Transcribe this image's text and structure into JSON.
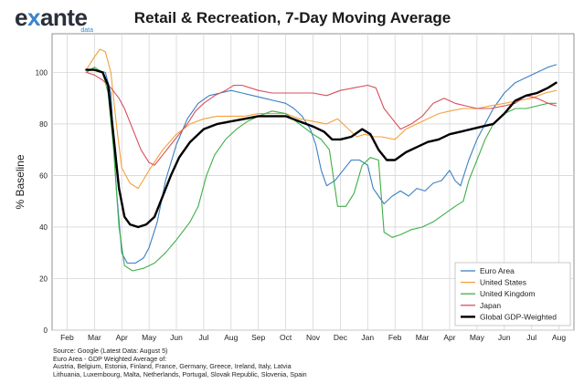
{
  "logo": {
    "text_main": "exante",
    "text_sub": "data"
  },
  "chart_data": {
    "type": "line",
    "title": "Retail & Recreation, 7-Day Moving Average",
    "ylabel": "% Baseline",
    "xlabel": "",
    "ylim": [
      0,
      115
    ],
    "yticks": [
      0,
      20,
      40,
      60,
      80,
      100
    ],
    "x_tick_labels": [
      "Feb",
      "Mar",
      "Apr",
      "May",
      "Jun",
      "Jul",
      "Aug",
      "Sep",
      "Oct",
      "Nov",
      "Dec",
      "Jan",
      "Feb",
      "Mar",
      "Apr",
      "May",
      "Jun",
      "Jul",
      "Aug"
    ],
    "x_unit_note": "month index from Feb 2020 (0) to Aug 2021 (18)",
    "grid": true,
    "legend_position": "bottom-right",
    "series": [
      {
        "name": "Euro Area",
        "color": "#3b7fc4",
        "points": [
          [
            1,
            101
          ],
          [
            1.4,
            100
          ],
          [
            1.6,
            92
          ],
          [
            1.8,
            55
          ],
          [
            2.0,
            30
          ],
          [
            2.2,
            26
          ],
          [
            2.5,
            26
          ],
          [
            2.8,
            28
          ],
          [
            3.0,
            32
          ],
          [
            3.3,
            42
          ],
          [
            3.6,
            58
          ],
          [
            4.0,
            72
          ],
          [
            4.4,
            82
          ],
          [
            4.8,
            88
          ],
          [
            5.2,
            91
          ],
          [
            5.6,
            92
          ],
          [
            6.0,
            93
          ],
          [
            6.4,
            92
          ],
          [
            6.8,
            91
          ],
          [
            7.2,
            90
          ],
          [
            7.6,
            89
          ],
          [
            8.0,
            88
          ],
          [
            8.3,
            86
          ],
          [
            8.6,
            83
          ],
          [
            8.9,
            78
          ],
          [
            9.1,
            72
          ],
          [
            9.3,
            62
          ],
          [
            9.5,
            56
          ],
          [
            9.8,
            58
          ],
          [
            10.1,
            62
          ],
          [
            10.4,
            66
          ],
          [
            10.7,
            66
          ],
          [
            11.0,
            64
          ],
          [
            11.2,
            55
          ],
          [
            11.4,
            52
          ],
          [
            11.6,
            49
          ],
          [
            11.9,
            52
          ],
          [
            12.2,
            54
          ],
          [
            12.5,
            52
          ],
          [
            12.8,
            55
          ],
          [
            13.1,
            54
          ],
          [
            13.4,
            57
          ],
          [
            13.7,
            58
          ],
          [
            14.0,
            62
          ],
          [
            14.2,
            58
          ],
          [
            14.4,
            56
          ],
          [
            14.7,
            66
          ],
          [
            15.0,
            74
          ],
          [
            15.3,
            80
          ],
          [
            15.6,
            86
          ],
          [
            16.0,
            92
          ],
          [
            16.4,
            96
          ],
          [
            16.8,
            98
          ],
          [
            17.2,
            100
          ],
          [
            17.6,
            102
          ],
          [
            17.9,
            103
          ]
        ]
      },
      {
        "name": "United States",
        "color": "#f4a13a",
        "points": [
          [
            0.7,
            101
          ],
          [
            1.0,
            106
          ],
          [
            1.2,
            109
          ],
          [
            1.4,
            108
          ],
          [
            1.6,
            100
          ],
          [
            1.8,
            80
          ],
          [
            2.0,
            63
          ],
          [
            2.3,
            57
          ],
          [
            2.6,
            55
          ],
          [
            3.0,
            62
          ],
          [
            3.5,
            70
          ],
          [
            4.0,
            76
          ],
          [
            4.5,
            80
          ],
          [
            5.0,
            82
          ],
          [
            5.5,
            83
          ],
          [
            6.0,
            83
          ],
          [
            6.5,
            83
          ],
          [
            7.0,
            84
          ],
          [
            7.5,
            84
          ],
          [
            8.0,
            84
          ],
          [
            8.5,
            82
          ],
          [
            9.0,
            81
          ],
          [
            9.5,
            80
          ],
          [
            9.9,
            82
          ],
          [
            10.3,
            78
          ],
          [
            10.6,
            75
          ],
          [
            10.9,
            76
          ],
          [
            11.2,
            75
          ],
          [
            11.5,
            75
          ],
          [
            12.0,
            74
          ],
          [
            12.4,
            78
          ],
          [
            12.8,
            80
          ],
          [
            13.2,
            82
          ],
          [
            13.6,
            84
          ],
          [
            14.0,
            85
          ],
          [
            14.5,
            86
          ],
          [
            15.0,
            86
          ],
          [
            15.5,
            87
          ],
          [
            16.0,
            88
          ],
          [
            16.5,
            89
          ],
          [
            17.0,
            90
          ],
          [
            17.5,
            92
          ],
          [
            17.9,
            93
          ]
        ]
      },
      {
        "name": "United Kingdom",
        "color": "#3fae49",
        "points": [
          [
            0.7,
            100
          ],
          [
            1.0,
            102
          ],
          [
            1.3,
            100
          ],
          [
            1.5,
            92
          ],
          [
            1.7,
            70
          ],
          [
            1.9,
            40
          ],
          [
            2.1,
            25
          ],
          [
            2.4,
            23
          ],
          [
            2.8,
            24
          ],
          [
            3.2,
            26
          ],
          [
            3.6,
            30
          ],
          [
            4.0,
            35
          ],
          [
            4.5,
            42
          ],
          [
            4.8,
            48
          ],
          [
            5.1,
            60
          ],
          [
            5.4,
            68
          ],
          [
            5.8,
            74
          ],
          [
            6.2,
            78
          ],
          [
            6.6,
            81
          ],
          [
            7.0,
            83
          ],
          [
            7.5,
            85
          ],
          [
            8.0,
            84
          ],
          [
            8.5,
            80
          ],
          [
            9.0,
            76
          ],
          [
            9.3,
            74
          ],
          [
            9.6,
            70
          ],
          [
            9.9,
            48
          ],
          [
            10.2,
            48
          ],
          [
            10.5,
            53
          ],
          [
            10.8,
            64
          ],
          [
            11.1,
            67
          ],
          [
            11.4,
            66
          ],
          [
            11.6,
            38
          ],
          [
            11.9,
            36
          ],
          [
            12.2,
            37
          ],
          [
            12.6,
            39
          ],
          [
            13.0,
            40
          ],
          [
            13.4,
            42
          ],
          [
            13.8,
            45
          ],
          [
            14.2,
            48
          ],
          [
            14.5,
            50
          ],
          [
            14.7,
            58
          ],
          [
            15.0,
            66
          ],
          [
            15.3,
            74
          ],
          [
            15.6,
            80
          ],
          [
            16.0,
            84
          ],
          [
            16.4,
            86
          ],
          [
            16.8,
            86
          ],
          [
            17.2,
            87
          ],
          [
            17.6,
            88
          ],
          [
            17.9,
            88
          ]
        ]
      },
      {
        "name": "Japan",
        "color": "#d94f5b",
        "points": [
          [
            0.7,
            100
          ],
          [
            1.0,
            99
          ],
          [
            1.3,
            97
          ],
          [
            1.6,
            94
          ],
          [
            1.9,
            90
          ],
          [
            2.1,
            86
          ],
          [
            2.4,
            78
          ],
          [
            2.7,
            70
          ],
          [
            3.0,
            65
          ],
          [
            3.2,
            64
          ],
          [
            3.5,
            68
          ],
          [
            3.8,
            72
          ],
          [
            4.1,
            76
          ],
          [
            4.4,
            80
          ],
          [
            4.7,
            85
          ],
          [
            5.0,
            88
          ],
          [
            5.4,
            91
          ],
          [
            5.8,
            93
          ],
          [
            6.1,
            95
          ],
          [
            6.4,
            95
          ],
          [
            6.7,
            94
          ],
          [
            7.0,
            93
          ],
          [
            7.5,
            92
          ],
          [
            8.0,
            92
          ],
          [
            8.5,
            92
          ],
          [
            9.0,
            92
          ],
          [
            9.5,
            91
          ],
          [
            10.0,
            93
          ],
          [
            10.5,
            94
          ],
          [
            11.0,
            95
          ],
          [
            11.3,
            94
          ],
          [
            11.6,
            86
          ],
          [
            11.9,
            82
          ],
          [
            12.2,
            78
          ],
          [
            12.6,
            80
          ],
          [
            13.0,
            83
          ],
          [
            13.4,
            88
          ],
          [
            13.8,
            90
          ],
          [
            14.2,
            88
          ],
          [
            14.6,
            87
          ],
          [
            15.0,
            86
          ],
          [
            15.5,
            86
          ],
          [
            16.0,
            87
          ],
          [
            16.4,
            88
          ],
          [
            16.8,
            91
          ],
          [
            17.2,
            90
          ],
          [
            17.6,
            88
          ],
          [
            17.9,
            87
          ]
        ]
      },
      {
        "name": "Global GDP-Weighted",
        "color": "#000000",
        "bold": true,
        "points": [
          [
            0.7,
            101
          ],
          [
            1.0,
            101
          ],
          [
            1.3,
            100
          ],
          [
            1.5,
            95
          ],
          [
            1.7,
            75
          ],
          [
            1.9,
            55
          ],
          [
            2.1,
            44
          ],
          [
            2.3,
            41
          ],
          [
            2.6,
            40
          ],
          [
            2.9,
            41
          ],
          [
            3.2,
            44
          ],
          [
            3.5,
            52
          ],
          [
            3.8,
            60
          ],
          [
            4.1,
            67
          ],
          [
            4.5,
            73
          ],
          [
            5.0,
            78
          ],
          [
            5.5,
            80
          ],
          [
            6.0,
            81
          ],
          [
            6.5,
            82
          ],
          [
            7.0,
            83
          ],
          [
            7.5,
            83
          ],
          [
            8.0,
            83
          ],
          [
            8.5,
            81
          ],
          [
            9.0,
            79
          ],
          [
            9.4,
            77
          ],
          [
            9.7,
            74
          ],
          [
            10.0,
            74
          ],
          [
            10.4,
            75
          ],
          [
            10.8,
            78
          ],
          [
            11.1,
            76
          ],
          [
            11.4,
            70
          ],
          [
            11.7,
            66
          ],
          [
            12.0,
            66
          ],
          [
            12.4,
            69
          ],
          [
            12.8,
            71
          ],
          [
            13.2,
            73
          ],
          [
            13.6,
            74
          ],
          [
            14.0,
            76
          ],
          [
            14.4,
            77
          ],
          [
            14.8,
            78
          ],
          [
            15.2,
            79
          ],
          [
            15.6,
            80
          ],
          [
            16.0,
            84
          ],
          [
            16.4,
            89
          ],
          [
            16.8,
            91
          ],
          [
            17.2,
            92
          ],
          [
            17.6,
            94
          ],
          [
            17.9,
            96
          ]
        ]
      }
    ]
  },
  "footnote": {
    "source": "Source: Google (Latest Data: August 5)",
    "line2": "Euro Area - GDP Weighted Average of:",
    "line3": "Austria, Belgium, Estonia, Finland, France, Germany, Greece, Ireland, Italy, Latvia",
    "line4": "Lithuania, Luxembourg, Malta, Netherlands, Portugal, Slovak Republic, Slovenia, Spain"
  }
}
